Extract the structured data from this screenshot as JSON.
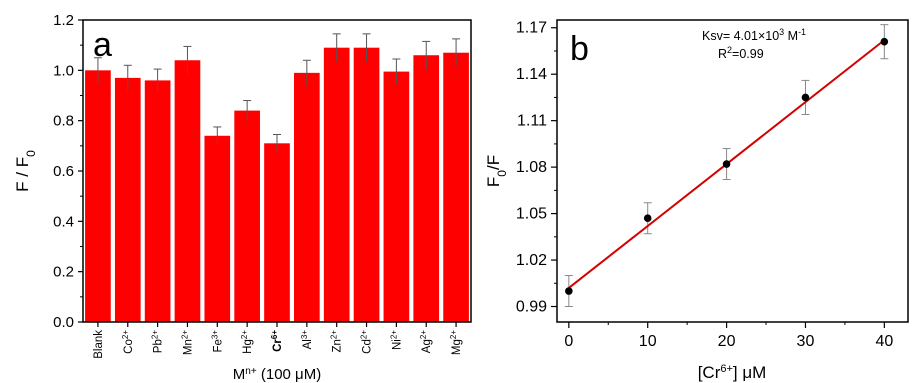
{
  "chart_data": [
    {
      "type": "bar",
      "panel_label": "a",
      "ylabel": "F / F",
      "ylabel_sub": "0",
      "xlabel": "M",
      "xlabel_sup": "n+",
      "xlabel_rest": " (100 μM)",
      "ylim": [
        0,
        1.2
      ],
      "yticks": [
        "0.0",
        "0.2",
        "0.4",
        "0.6",
        "0.8",
        "1.0",
        "1.2"
      ],
      "bar_color": "#ff0000",
      "categories": [
        {
          "base": "Blank",
          "sup": "",
          "bold": false
        },
        {
          "base": "Co",
          "sup": "2+",
          "bold": false
        },
        {
          "base": "Pb",
          "sup": "2+",
          "bold": false
        },
        {
          "base": "Mn",
          "sup": "2+",
          "bold": false
        },
        {
          "base": "Fe",
          "sup": "3+",
          "bold": false
        },
        {
          "base": "Hg",
          "sup": "2+",
          "bold": false
        },
        {
          "base": "Cr",
          "sup": "6+",
          "bold": true
        },
        {
          "base": "Al",
          "sup": "3+",
          "bold": false
        },
        {
          "base": "Zn",
          "sup": "2+",
          "bold": false
        },
        {
          "base": "Cd",
          "sup": "2+",
          "bold": false
        },
        {
          "base": "Ni",
          "sup": "2+",
          "bold": false
        },
        {
          "base": "Ag",
          "sup": "2+",
          "bold": false
        },
        {
          "base": "Mg",
          "sup": "2+",
          "bold": false
        }
      ],
      "values": [
        1.0,
        0.97,
        0.96,
        1.04,
        0.74,
        0.84,
        0.71,
        0.99,
        1.09,
        1.09,
        0.995,
        1.06,
        1.07
      ],
      "errors": [
        0.05,
        0.05,
        0.045,
        0.055,
        0.035,
        0.04,
        0.035,
        0.05,
        0.055,
        0.055,
        0.05,
        0.055,
        0.055
      ]
    },
    {
      "type": "scatter",
      "panel_label": "b",
      "ylabel": "F",
      "ylabel_sub": "0",
      "ylabel_rest": "/F",
      "xlabel": "[Cr",
      "xlabel_sup": "6+",
      "xlabel_rest": "] μM",
      "xlim": [
        -1.5,
        43
      ],
      "ylim": [
        0.98,
        1.175
      ],
      "xticks": [
        "0",
        "10",
        "20",
        "30",
        "40"
      ],
      "yticks": [
        "0.99",
        "1.02",
        "1.05",
        "1.08",
        "1.11",
        "1.14",
        "1.17"
      ],
      "x": [
        0,
        10,
        20,
        30,
        40
      ],
      "y": [
        1.0,
        1.047,
        1.082,
        1.125,
        1.161
      ],
      "errors": [
        0.01,
        0.01,
        0.01,
        0.011,
        0.011
      ],
      "fit": {
        "x": [
          0,
          40
        ],
        "y": [
          1.002,
          1.162
        ],
        "color": "#d40000"
      },
      "annotation": {
        "ksv_prefix": "Ksv= 4.01×10",
        "ksv_exp": "3",
        "ksv_unit": " M",
        "ksv_unit_exp": "-1",
        "r2_prefix": "R",
        "r2_exp": "2",
        "r2_rest": "=0.99"
      }
    }
  ]
}
